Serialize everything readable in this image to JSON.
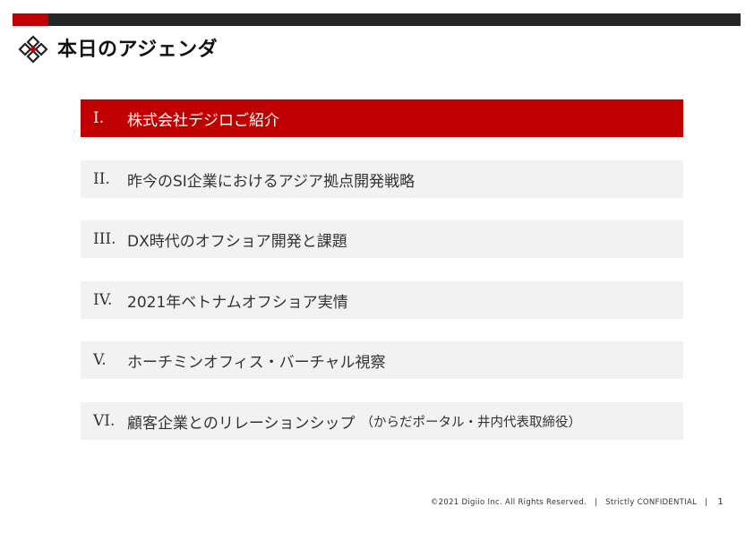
{
  "header": {
    "title": "本日のアジェンダ",
    "colors": {
      "accent": "#c00000",
      "bar": "#262626"
    },
    "logo_icon": "diamond-logo-icon"
  },
  "agenda": {
    "items": [
      {
        "num": "I.",
        "label": "株式会社デジロご紹介",
        "sub": "",
        "active": true
      },
      {
        "num": "II.",
        "label": "昨今のSI企業におけるアジア拠点開発戦略",
        "sub": "",
        "active": false
      },
      {
        "num": "III.",
        "label": "DX時代のオフショア開発と課題",
        "sub": "",
        "active": false
      },
      {
        "num": "IV.",
        "label": "2021年ベトナムオフショア実情",
        "sub": "",
        "active": false
      },
      {
        "num": "V.",
        "label": "ホーチミンオフィス・バーチャル視察",
        "sub": "",
        "active": false
      },
      {
        "num": "VI.",
        "label": "顧客企業とのリレーションシップ",
        "sub": "（からだポータル・井内代表取締役）",
        "active": false
      }
    ]
  },
  "footer": {
    "copyright": "©2021 Digiio Inc. All Rights Reserved.",
    "sep1": "|",
    "confidential": "Strictly CONFIDENTIAL",
    "sep2": "|",
    "page": "1"
  }
}
